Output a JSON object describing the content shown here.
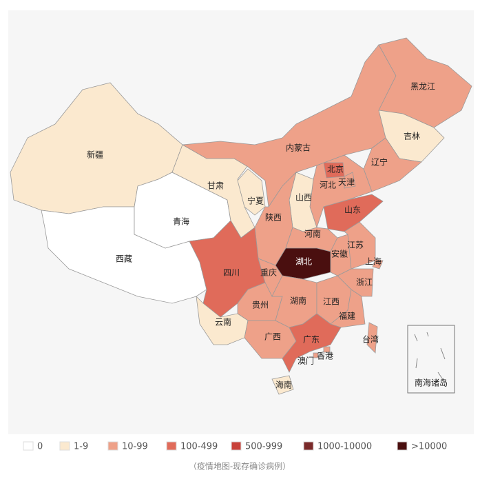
{
  "title_caption": "（疫情地图-现存确诊病例）",
  "inset_label": "南海诸岛",
  "regions": [
    {
      "name": "新疆",
      "color": "#fbe9cf"
    },
    {
      "name": "西藏",
      "color": "#ffffff"
    },
    {
      "name": "青海",
      "color": "#ffffff"
    },
    {
      "name": "甘肃",
      "color": "#fbe9cf"
    },
    {
      "name": "宁夏",
      "color": "#fbe9cf"
    },
    {
      "name": "内蒙古",
      "color": "#eea189"
    },
    {
      "name": "黑龙江",
      "color": "#eea189"
    },
    {
      "name": "吉林",
      "color": "#fbe9cf"
    },
    {
      "name": "辽宁",
      "color": "#eea189"
    },
    {
      "name": "北京",
      "color": "#e06b5a"
    },
    {
      "name": "天津",
      "color": "#eea189"
    },
    {
      "name": "河北",
      "color": "#eea189"
    },
    {
      "name": "山西",
      "color": "#fbe9cf"
    },
    {
      "name": "山东",
      "color": "#e06b5a"
    },
    {
      "name": "陕西",
      "color": "#eea189"
    },
    {
      "name": "河南",
      "color": "#eea189"
    },
    {
      "name": "湖北",
      "color": "#4a0f0f"
    },
    {
      "name": "四川",
      "color": "#e06b5a"
    },
    {
      "name": "重庆",
      "color": "#eea189"
    },
    {
      "name": "贵州",
      "color": "#eea189"
    },
    {
      "name": "云南",
      "color": "#fbe9cf"
    },
    {
      "name": "广西",
      "color": "#eea189"
    },
    {
      "name": "湖南",
      "color": "#eea189"
    },
    {
      "name": "江西",
      "color": "#eea189"
    },
    {
      "name": "广东",
      "color": "#e06b5a"
    },
    {
      "name": "福建",
      "color": "#eea189"
    },
    {
      "name": "浙江",
      "color": "#eea189"
    },
    {
      "name": "安徽",
      "color": "#eea189"
    },
    {
      "name": "江苏",
      "color": "#eea189"
    },
    {
      "name": "上海",
      "color": "#eea189"
    },
    {
      "name": "台湾",
      "color": "#eea189"
    },
    {
      "name": "海南",
      "color": "#fbe9cf"
    },
    {
      "name": "香港",
      "color": "#eea189"
    },
    {
      "name": "澳门",
      "color": "#eea189"
    }
  ],
  "legend": [
    {
      "label": "0",
      "color": "#ffffff"
    },
    {
      "label": "1-9",
      "color": "#fbe9cf"
    },
    {
      "label": "10-99",
      "color": "#eea189"
    },
    {
      "label": "100-499",
      "color": "#e06b5a"
    },
    {
      "label": "500-999",
      "color": "#c8423a"
    },
    {
      "label": "1000-10000",
      "color": "#7a2a2a"
    },
    {
      "label": ">10000",
      "color": "#4a0f0f"
    }
  ]
}
